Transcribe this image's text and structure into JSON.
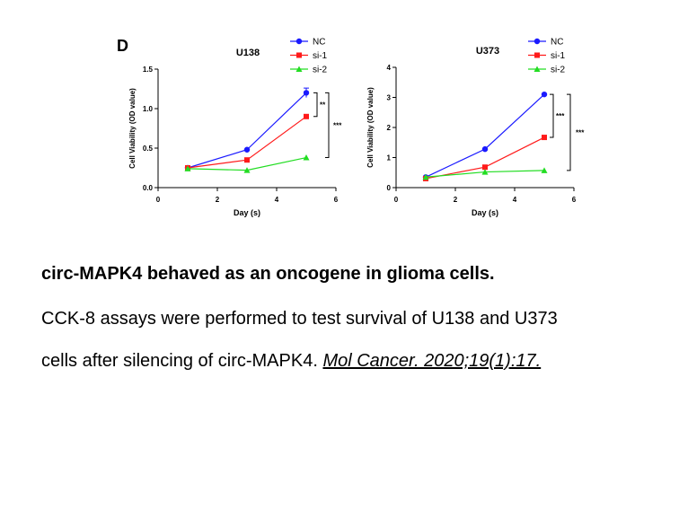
{
  "figure": {
    "panel_label": "D",
    "caption_title": "circ-MAPK4 behaved as an oncogene in glioma cells.",
    "caption_line1": "CCK-8 assays were performed to test survival of U138 and U373",
    "caption_line2": "cells after silencing of circ-MAPK4.",
    "caption_reference": "Mol Cancer. 2020;19(1):17."
  },
  "chart_data": [
    {
      "type": "line",
      "title": "U138",
      "xlabel": "Day (s)",
      "ylabel": "Cell Viability (OD value)",
      "xlim": [
        0,
        6
      ],
      "ylim": [
        0,
        1.5
      ],
      "x_ticks": [
        "0",
        "2",
        "4",
        "6"
      ],
      "y_ticks": [
        "0.0",
        "0.5",
        "1.0",
        "1.5"
      ],
      "x": [
        1,
        3,
        5
      ],
      "series": [
        {
          "name": "NC",
          "values": [
            0.25,
            0.48,
            1.2
          ],
          "color": "#1a1aff",
          "marker": "circle"
        },
        {
          "name": "si-1",
          "values": [
            0.25,
            0.35,
            0.9
          ],
          "color": "#ff1a1a",
          "marker": "square"
        },
        {
          "name": "si-2",
          "values": [
            0.24,
            0.22,
            0.38
          ],
          "color": "#22dd22",
          "marker": "triangle"
        }
      ],
      "annotations": [
        "**",
        "***"
      ],
      "grid": false,
      "legend": "top-right"
    },
    {
      "type": "line",
      "title": "U373",
      "xlabel": "Day (s)",
      "ylabel": "Cell  Viability (OD value)",
      "xlim": [
        0,
        6
      ],
      "ylim": [
        0,
        4
      ],
      "x_ticks": [
        "0",
        "2",
        "4",
        "6"
      ],
      "y_ticks": [
        "0",
        "1",
        "2",
        "3",
        "4"
      ],
      "x": [
        1,
        3,
        5
      ],
      "series": [
        {
          "name": "NC",
          "values": [
            0.35,
            1.28,
            3.1
          ],
          "color": "#1a1aff",
          "marker": "circle"
        },
        {
          "name": "si-1",
          "values": [
            0.3,
            0.68,
            1.67
          ],
          "color": "#ff1a1a",
          "marker": "square"
        },
        {
          "name": "si-2",
          "values": [
            0.35,
            0.52,
            0.57
          ],
          "color": "#22dd22",
          "marker": "triangle"
        }
      ],
      "annotations": [
        "***",
        "***"
      ],
      "grid": false,
      "legend": "top-right"
    }
  ]
}
